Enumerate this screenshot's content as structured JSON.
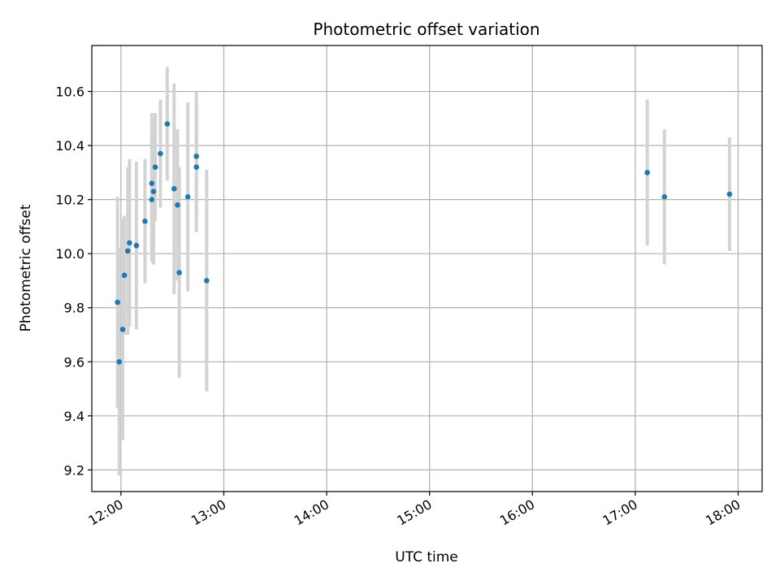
{
  "chart_data": {
    "type": "scatter",
    "title": "Photometric offset variation",
    "xlabel": "UTC time",
    "ylabel": "Photometric offset",
    "grid": true,
    "xlim": [
      "11:43",
      "18:14"
    ],
    "ylim": [
      9.12,
      10.77
    ],
    "x_ticks": [
      "12:00",
      "13:00",
      "14:00",
      "15:00",
      "16:00",
      "17:00",
      "18:00"
    ],
    "y_ticks": [
      "9.2",
      "9.4",
      "9.6",
      "9.8",
      "10.0",
      "10.2",
      "10.4",
      "10.6"
    ],
    "colors": {
      "point": "#1f77b4",
      "errorbar": "#d3d3d3",
      "grid": "#b0b0b0"
    },
    "series": [
      {
        "points": [
          {
            "x": "11:58",
            "y": 9.82,
            "err": 0.39
          },
          {
            "x": "11:59",
            "y": 9.6,
            "err": 0.42
          },
          {
            "x": "12:01",
            "y": 9.72,
            "err": 0.41
          },
          {
            "x": "12:02",
            "y": 9.92,
            "err": 0.22
          },
          {
            "x": "12:04",
            "y": 10.01,
            "err": 0.31
          },
          {
            "x": "12:05",
            "y": 10.04,
            "err": 0.31
          },
          {
            "x": "12:09",
            "y": 10.03,
            "err": 0.31
          },
          {
            "x": "12:14",
            "y": 10.12,
            "err": 0.23
          },
          {
            "x": "12:18",
            "y": 10.2,
            "err": 0.23
          },
          {
            "x": "12:18",
            "y": 10.26,
            "err": 0.26
          },
          {
            "x": "12:19",
            "y": 10.23,
            "err": 0.27
          },
          {
            "x": "12:20",
            "y": 10.32,
            "err": 0.2
          },
          {
            "x": "12:23",
            "y": 10.37,
            "err": 0.2
          },
          {
            "x": "12:27",
            "y": 10.48,
            "err": 0.21
          },
          {
            "x": "12:31",
            "y": 10.24,
            "err": 0.39
          },
          {
            "x": "12:33",
            "y": 10.18,
            "err": 0.28
          },
          {
            "x": "12:34",
            "y": 9.93,
            "err": 0.39
          },
          {
            "x": "12:39",
            "y": 10.21,
            "err": 0.35
          },
          {
            "x": "12:44",
            "y": 10.32,
            "err": 0.24
          },
          {
            "x": "12:44",
            "y": 10.36,
            "err": 0.24
          },
          {
            "x": "12:50",
            "y": 9.9,
            "err": 0.41
          },
          {
            "x": "17:07",
            "y": 10.3,
            "err": 0.27
          },
          {
            "x": "17:17",
            "y": 10.21,
            "err": 0.25
          },
          {
            "x": "17:55",
            "y": 10.22,
            "err": 0.21
          }
        ]
      }
    ]
  }
}
